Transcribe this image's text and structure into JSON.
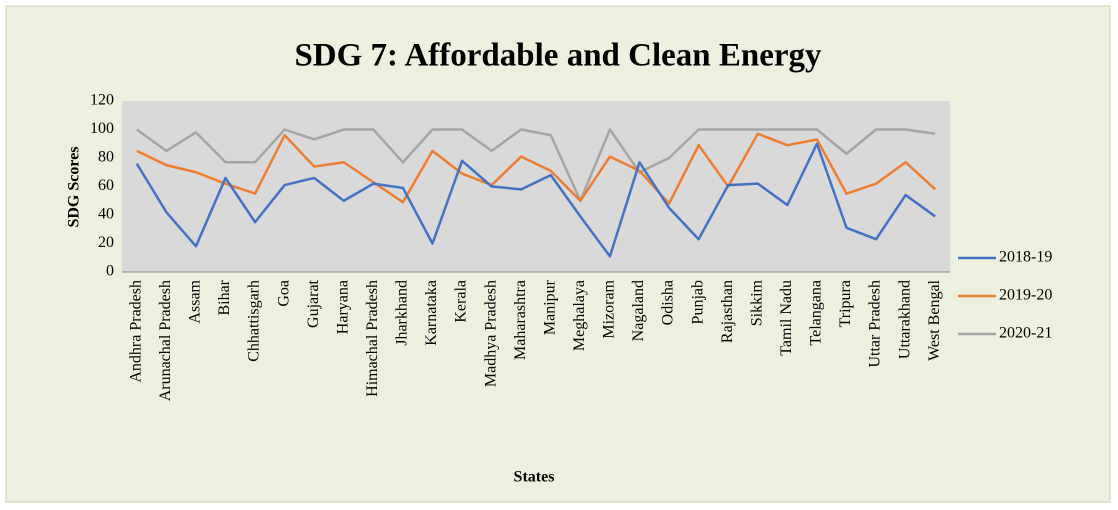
{
  "chart_data": {
    "type": "line",
    "title": "SDG 7: Affordable and Clean Energy",
    "x_label": "States",
    "y_label": "SDG Scores",
    "categories": [
      "Andhra Pradesh",
      "Arunachal Pradesh",
      "Assam",
      "Bihar",
      "Chhattisgarh",
      "Goa",
      "Gujarat",
      "Haryana",
      "Himachal Pradesh",
      "Jharkhand",
      "Karnataka",
      "Kerala",
      "Madhya Pradesh",
      "Maharashtra",
      "Manipur",
      "Meghalaya",
      "Mizoram",
      "Nagaland",
      "Odisha",
      "Punjab",
      "Rajasthan",
      "Sikkim",
      "Tamil Nadu",
      "Telangana",
      "Tripura",
      "Uttar Pradesh",
      "Uttarakhand",
      "West Bengal"
    ],
    "series": [
      {
        "name": "2018-19",
        "color": "#4472c4",
        "values": [
          76,
          42,
          18,
          66,
          35,
          61,
          66,
          50,
          62,
          59,
          20,
          78,
          60,
          58,
          68,
          39,
          11,
          77,
          45,
          23,
          61,
          62,
          47,
          90,
          31,
          23,
          54,
          39
        ]
      },
      {
        "name": "2019-20",
        "color": "#ed7d31",
        "values": [
          85,
          75,
          70,
          62,
          55,
          96,
          74,
          77,
          63,
          49,
          85,
          69,
          61,
          81,
          71,
          50,
          81,
          71,
          48,
          89,
          60,
          97,
          89,
          93,
          55,
          62,
          77,
          58
        ]
      },
      {
        "name": "2020-21",
        "color": "#a5a5a5",
        "values": [
          100,
          85,
          98,
          77,
          77,
          100,
          93,
          100,
          100,
          77,
          100,
          100,
          85,
          100,
          96,
          50,
          100,
          70,
          80,
          100,
          100,
          100,
          100,
          100,
          83,
          100,
          100,
          97
        ]
      }
    ],
    "ylim": [
      0,
      120
    ],
    "yticks": [
      0,
      20,
      40,
      60,
      80,
      100,
      120
    ],
    "grid": false,
    "legend": "right"
  }
}
